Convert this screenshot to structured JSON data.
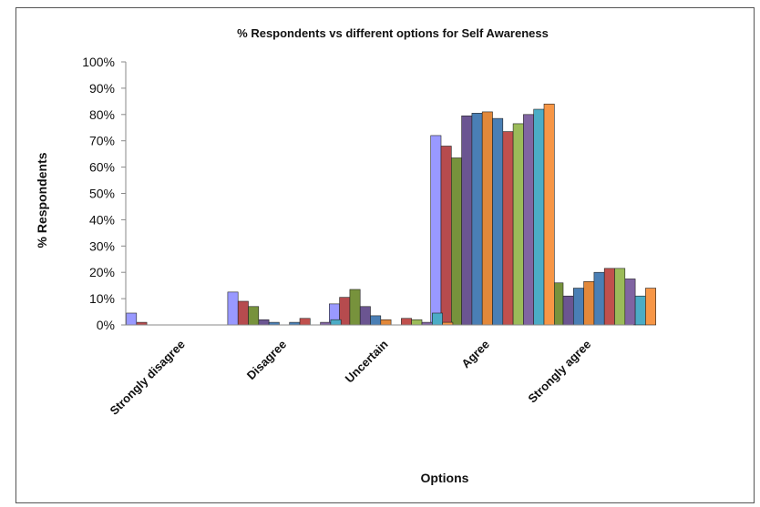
{
  "chart_data": {
    "type": "bar",
    "title": "% Respondents vs different options for Self Awareness",
    "xlabel": "Options",
    "ylabel": "% Respondents",
    "ylim": [
      0,
      100
    ],
    "ytick_labels": [
      "0%",
      "10%",
      "20%",
      "30%",
      "40%",
      "50%",
      "60%",
      "70%",
      "80%",
      "90%",
      "100%"
    ],
    "categories": [
      "Strongly disagree",
      "Disagree",
      "Uncertain",
      "Agree",
      "Strongly agree"
    ],
    "grid": false,
    "legend": "none",
    "series": [
      {
        "color": "#9999ff",
        "values": [
          4.5,
          12.5,
          8,
          72,
          3.5
        ]
      },
      {
        "color": "#b64b4e",
        "values": [
          1,
          9,
          10.5,
          68,
          11.5
        ]
      },
      {
        "color": "#77923c",
        "values": [
          0,
          7,
          13.5,
          63.5,
          16
        ]
      },
      {
        "color": "#6b5591",
        "values": [
          0,
          2,
          7,
          79.5,
          11
        ]
      },
      {
        "color": "#4a7fb5",
        "values": [
          0,
          1,
          3.5,
          80.5,
          14
        ]
      },
      {
        "color": "#e2883a",
        "values": [
          0,
          0,
          2,
          81,
          16.5
        ]
      },
      {
        "color": "#4a7fb5",
        "values": [
          0,
          1,
          0,
          78.5,
          20
        ]
      },
      {
        "color": "#c0504d",
        "values": [
          0,
          2.5,
          2.5,
          73.5,
          21.5
        ]
      },
      {
        "color": "#9bbb59",
        "values": [
          0,
          0,
          2,
          76.5,
          21.5
        ]
      },
      {
        "color": "#8064a2",
        "values": [
          0,
          1,
          1,
          80,
          17.5
        ]
      },
      {
        "color": "#4bacc6",
        "values": [
          0,
          2,
          4.5,
          82,
          11
        ]
      },
      {
        "color": "#f79646",
        "values": [
          0,
          0,
          1,
          84,
          14
        ]
      }
    ]
  }
}
